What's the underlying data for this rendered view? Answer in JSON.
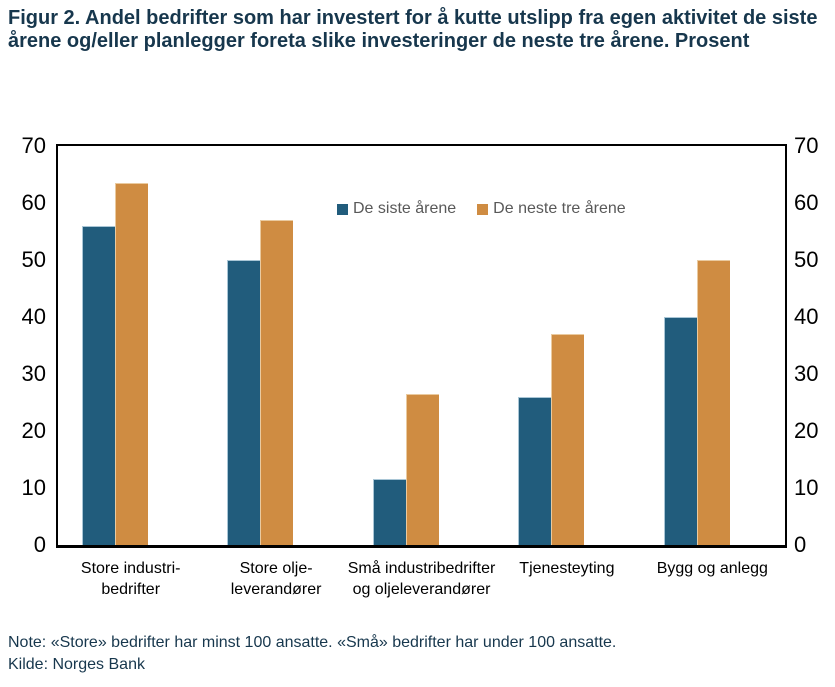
{
  "title": "Figur 2. Andel bedrifter som har investert for å kutte utslipp fra egen aktivitet de siste årene og/eller planlegger foreta slike investeringer de neste tre årene. Prosent",
  "note": {
    "line1": "Note: «Store» bedrifter har minst 100 ansatte. «Små» bedrifter har under 100 ansatte.",
    "line2": "Kilde: Norges Bank"
  },
  "colors": {
    "series1": "#215C7C",
    "series1_edge": "#A9C6D6",
    "series2": "#CF8C42",
    "series2_edge": "#EACA9F",
    "heading_text": "#17374D",
    "legend_text": "#595959",
    "axis_text": "#000000",
    "plot_border": "#000000"
  },
  "chart_data": {
    "type": "bar",
    "title": "Figur 2. Andel bedrifter som har investert for å kutte utslipp fra egen aktivitet de siste årene og/eller planlegger foreta slike investeringer de neste tre årene. Prosent",
    "categories": [
      "Store industri-bedrifter",
      "Store olje-leverandører",
      "Små industribedrifter og oljeleverandører",
      "Tjenesteyting",
      "Bygg og anlegg"
    ],
    "category_label_lines": [
      [
        "Store industri-",
        "bedrifter"
      ],
      [
        "Store olje-",
        "leverandører"
      ],
      [
        "Små industribedrifter",
        "og oljeleverandører"
      ],
      [
        "Tjenesteyting"
      ],
      [
        "Bygg og anlegg"
      ]
    ],
    "series": [
      {
        "name": "De siste årene",
        "color": "#215C7C",
        "values": [
          56,
          50,
          11.5,
          26,
          40
        ]
      },
      {
        "name": "De neste tre årene",
        "color": "#CF8C42",
        "values": [
          63.5,
          57,
          26.5,
          37,
          50
        ]
      }
    ],
    "xlabel": "",
    "ylabel": "",
    "ylim": [
      0,
      70
    ],
    "yticks": [
      0,
      10,
      20,
      30,
      40,
      50,
      60,
      70
    ],
    "grid": false,
    "axis_sides": "both",
    "legend_position": "inside-top-center"
  }
}
